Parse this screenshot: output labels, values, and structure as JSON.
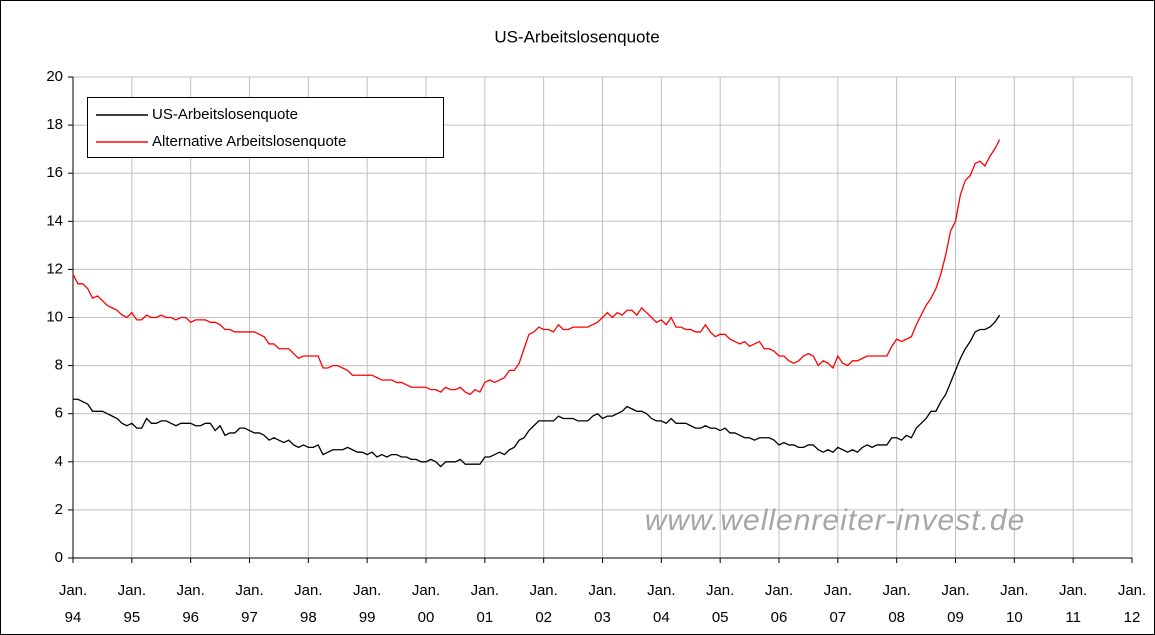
{
  "chart_data": {
    "type": "line",
    "title": "US-Arbeitslosenquote",
    "watermark": "www.wellenreiter-invest.de",
    "categories": [
      "Jan. 94",
      null,
      null,
      null,
      null,
      null,
      null,
      null,
      null,
      null,
      null,
      null,
      "Jan. 95",
      null,
      null,
      null,
      null,
      null,
      null,
      null,
      null,
      null,
      null,
      null,
      "Jan. 96",
      null,
      null,
      null,
      null,
      null,
      null,
      null,
      null,
      null,
      null,
      null,
      "Jan. 97",
      null,
      null,
      null,
      null,
      null,
      null,
      null,
      null,
      null,
      null,
      null,
      "Jan. 98",
      null,
      null,
      null,
      null,
      null,
      null,
      null,
      null,
      null,
      null,
      null,
      "Jan. 99",
      null,
      null,
      null,
      null,
      null,
      null,
      null,
      null,
      null,
      null,
      null,
      "Jan. 00",
      null,
      null,
      null,
      null,
      null,
      null,
      null,
      null,
      null,
      null,
      null,
      "Jan. 01",
      null,
      null,
      null,
      null,
      null,
      null,
      null,
      null,
      null,
      null,
      null,
      "Jan. 02",
      null,
      null,
      null,
      null,
      null,
      null,
      null,
      null,
      null,
      null,
      null,
      "Jan. 03",
      null,
      null,
      null,
      null,
      null,
      null,
      null,
      null,
      null,
      null,
      null,
      "Jan. 04",
      null,
      null,
      null,
      null,
      null,
      null,
      null,
      null,
      null,
      null,
      null,
      "Jan. 05",
      null,
      null,
      null,
      null,
      null,
      null,
      null,
      null,
      null,
      null,
      null,
      "Jan. 06",
      null,
      null,
      null,
      null,
      null,
      null,
      null,
      null,
      null,
      null,
      null,
      "Jan. 07",
      null,
      null,
      null,
      null,
      null,
      null,
      null,
      null,
      null,
      null,
      null,
      "Jan. 08",
      null,
      null,
      null,
      null,
      null,
      null,
      null,
      null,
      null,
      null,
      null,
      "Jan. 09",
      null,
      null,
      null,
      null,
      null,
      null,
      null,
      null,
      null,
      null,
      null,
      "Jan. 10",
      null,
      null,
      null,
      null,
      null,
      null,
      null,
      null,
      null,
      null,
      null,
      "Jan. 11",
      null,
      null,
      null,
      null,
      null,
      null,
      null,
      null,
      null,
      null,
      null,
      "Jan. 12"
    ],
    "series": [
      {
        "name": "US-Arbeitslosenquote",
        "color": "#000000",
        "values": [
          6.6,
          6.6,
          6.5,
          6.4,
          6.1,
          6.1,
          6.1,
          6.0,
          5.9,
          5.8,
          5.6,
          5.5,
          5.6,
          5.4,
          5.4,
          5.8,
          5.6,
          5.6,
          5.7,
          5.7,
          5.6,
          5.5,
          5.6,
          5.6,
          5.6,
          5.5,
          5.5,
          5.6,
          5.6,
          5.3,
          5.5,
          5.1,
          5.2,
          5.2,
          5.4,
          5.4,
          5.3,
          5.2,
          5.2,
          5.1,
          4.9,
          5.0,
          4.9,
          4.8,
          4.9,
          4.7,
          4.6,
          4.7,
          4.6,
          4.6,
          4.7,
          4.3,
          4.4,
          4.5,
          4.5,
          4.5,
          4.6,
          4.5,
          4.4,
          4.4,
          4.3,
          4.4,
          4.2,
          4.3,
          4.2,
          4.3,
          4.3,
          4.2,
          4.2,
          4.1,
          4.1,
          4.0,
          4.0,
          4.1,
          4.0,
          3.8,
          4.0,
          4.0,
          4.0,
          4.1,
          3.9,
          3.9,
          3.9,
          3.9,
          4.2,
          4.2,
          4.3,
          4.4,
          4.3,
          4.5,
          4.6,
          4.9,
          5.0,
          5.3,
          5.5,
          5.7,
          5.7,
          5.7,
          5.7,
          5.9,
          5.8,
          5.8,
          5.8,
          5.7,
          5.7,
          5.7,
          5.9,
          6.0,
          5.8,
          5.9,
          5.9,
          6.0,
          6.1,
          6.3,
          6.2,
          6.1,
          6.1,
          6.0,
          5.8,
          5.7,
          5.7,
          5.6,
          5.8,
          5.6,
          5.6,
          5.6,
          5.5,
          5.4,
          5.4,
          5.5,
          5.4,
          5.4,
          5.3,
          5.4,
          5.2,
          5.2,
          5.1,
          5.0,
          5.0,
          4.9,
          5.0,
          5.0,
          5.0,
          4.9,
          4.7,
          4.8,
          4.7,
          4.7,
          4.6,
          4.6,
          4.7,
          4.7,
          4.5,
          4.4,
          4.5,
          4.4,
          4.6,
          4.5,
          4.4,
          4.5,
          4.4,
          4.6,
          4.7,
          4.6,
          4.7,
          4.7,
          4.7,
          5.0,
          5.0,
          4.9,
          5.1,
          5.0,
          5.4,
          5.6,
          5.8,
          6.1,
          6.1,
          6.5,
          6.8,
          7.3,
          7.8,
          8.3,
          8.7,
          9.0,
          9.4,
          9.5,
          9.5,
          9.6,
          9.8,
          10.1,
          null,
          null,
          null,
          null,
          null,
          null,
          null,
          null,
          null,
          null,
          null,
          null,
          null,
          null,
          null,
          null,
          null,
          null,
          null,
          null,
          null,
          null,
          null,
          null,
          null,
          null,
          null
        ]
      },
      {
        "name": "Alternative Arbeitslosenquote",
        "color": "#ff0000",
        "values": [
          11.8,
          11.4,
          11.4,
          11.2,
          10.8,
          10.9,
          10.7,
          10.5,
          10.4,
          10.3,
          10.1,
          10.0,
          10.2,
          9.9,
          9.9,
          10.1,
          10.0,
          10.0,
          10.1,
          10.0,
          10.0,
          9.9,
          10.0,
          10.0,
          9.8,
          9.9,
          9.9,
          9.9,
          9.8,
          9.8,
          9.7,
          9.5,
          9.5,
          9.4,
          9.4,
          9.4,
          9.4,
          9.4,
          9.3,
          9.2,
          8.9,
          8.9,
          8.7,
          8.7,
          8.7,
          8.5,
          8.3,
          8.4,
          8.4,
          8.4,
          8.4,
          7.9,
          7.9,
          8.0,
          8.0,
          7.9,
          7.8,
          7.6,
          7.6,
          7.6,
          7.6,
          7.6,
          7.5,
          7.4,
          7.4,
          7.4,
          7.3,
          7.3,
          7.2,
          7.1,
          7.1,
          7.1,
          7.1,
          7.0,
          7.0,
          6.9,
          7.1,
          7.0,
          7.0,
          7.1,
          6.9,
          6.8,
          7.0,
          6.9,
          7.3,
          7.4,
          7.3,
          7.4,
          7.5,
          7.8,
          7.8,
          8.1,
          8.7,
          9.3,
          9.4,
          9.6,
          9.5,
          9.5,
          9.4,
          9.7,
          9.5,
          9.5,
          9.6,
          9.6,
          9.6,
          9.6,
          9.7,
          9.8,
          10.0,
          10.2,
          10.0,
          10.2,
          10.1,
          10.3,
          10.3,
          10.1,
          10.4,
          10.2,
          10.0,
          9.8,
          9.9,
          9.7,
          10.0,
          9.6,
          9.6,
          9.5,
          9.5,
          9.4,
          9.4,
          9.7,
          9.4,
          9.2,
          9.3,
          9.3,
          9.1,
          9.0,
          8.9,
          9.0,
          8.8,
          8.9,
          9.0,
          8.7,
          8.7,
          8.6,
          8.4,
          8.4,
          8.2,
          8.1,
          8.2,
          8.4,
          8.5,
          8.4,
          8.0,
          8.2,
          8.1,
          7.9,
          8.4,
          8.1,
          8.0,
          8.2,
          8.2,
          8.3,
          8.4,
          8.4,
          8.4,
          8.4,
          8.4,
          8.8,
          9.1,
          9.0,
          9.1,
          9.2,
          9.7,
          10.1,
          10.5,
          10.8,
          11.2,
          11.8,
          12.6,
          13.6,
          14.0,
          15.1,
          15.7,
          15.9,
          16.4,
          16.5,
          16.3,
          16.7,
          17.0,
          17.4,
          null,
          null,
          null,
          null,
          null,
          null,
          null,
          null,
          null,
          null,
          null,
          null,
          null,
          null,
          null,
          null,
          null,
          null,
          null,
          null,
          null,
          null,
          null,
          null,
          null,
          null,
          null
        ]
      }
    ],
    "ylim": [
      0,
      20
    ],
    "yticks": [
      0,
      2,
      4,
      6,
      8,
      10,
      12,
      14,
      16,
      18,
      20
    ],
    "grid": true,
    "legend": "upper left"
  }
}
